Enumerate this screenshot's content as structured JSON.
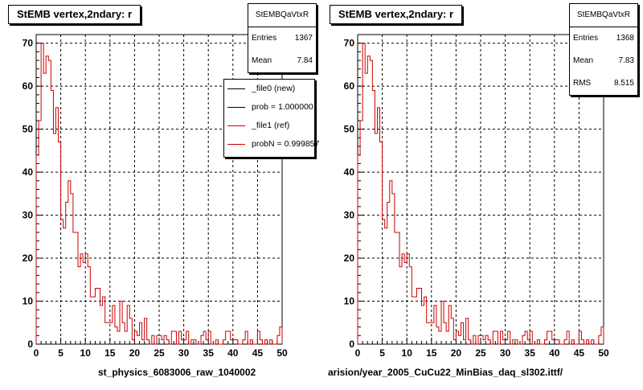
{
  "pads": [
    {
      "title": "StEMB  vertex,2ndary: r",
      "stats": {
        "name": "StEMBQaVtxR",
        "rows": [
          {
            "label": "Entries",
            "value": "1367"
          },
          {
            "label": "Mean",
            "value": "7.84"
          }
        ]
      },
      "legend": [
        {
          "label": "_file0 (new)",
          "color": "#000000"
        },
        {
          "label": "prob = 1.000000",
          "color": "#000000"
        },
        {
          "label": "_file1 (ref)",
          "color": "#cc0000"
        },
        {
          "label": "probN = 0.999857",
          "color": "#cc0000"
        }
      ],
      "xcaption": "st_physics_6083006_raw_1040002"
    },
    {
      "title": "StEMB  vertex,2ndary: r",
      "stats": {
        "name": "StEMBQaVtxR",
        "rows": [
          {
            "label": "Entries",
            "value": "1368"
          },
          {
            "label": "Mean",
            "value": "7.83"
          },
          {
            "label": "RMS",
            "value": "8.515"
          }
        ]
      },
      "legend": [],
      "xcaption": "arision/year_2005_CuCu22_MinBias_daq_sl302.ittf/"
    }
  ],
  "chart_data": [
    {
      "type": "bar",
      "style": "step-histogram",
      "title": "StEMB  vertex,2ndary: r",
      "xlabel": "",
      "ylabel": "",
      "xlim": [
        0,
        50
      ],
      "ylim": [
        0,
        72
      ],
      "xticks": [
        0,
        5,
        10,
        15,
        20,
        25,
        30,
        35,
        40,
        45,
        50
      ],
      "yticks": [
        0,
        10,
        20,
        30,
        40,
        50,
        60,
        70
      ],
      "grid": true,
      "legend_position": "top-right",
      "bin_width": 0.5,
      "series": [
        {
          "name": "_file1 (ref)",
          "color": "#cc0000",
          "values": [
            44,
            52,
            70,
            63,
            67,
            66,
            59,
            49,
            55,
            47,
            29,
            27,
            33,
            38,
            35,
            26,
            26,
            18,
            21,
            19,
            21,
            18,
            11,
            11,
            13,
            13,
            9,
            11,
            5,
            5,
            5,
            9,
            4,
            3,
            10,
            5,
            3,
            9,
            6,
            1,
            3,
            2,
            5,
            1,
            6,
            1,
            0,
            2,
            0,
            2,
            2,
            1,
            2,
            1,
            0,
            3,
            3,
            0,
            3,
            1,
            1,
            3,
            0,
            1,
            1,
            0,
            0,
            2,
            3,
            1,
            3,
            0,
            0,
            1,
            0,
            0,
            1,
            3,
            3,
            1,
            1,
            1,
            0,
            0,
            1,
            3,
            0,
            1,
            0,
            0,
            3,
            1,
            0,
            1,
            0,
            1,
            0,
            0,
            2,
            4
          ]
        }
      ]
    },
    {
      "type": "bar",
      "style": "step-histogram",
      "title": "StEMB  vertex,2ndary: r",
      "xlabel": "",
      "ylabel": "",
      "xlim": [
        0,
        50
      ],
      "ylim": [
        0,
        72
      ],
      "xticks": [
        0,
        5,
        10,
        15,
        20,
        25,
        30,
        35,
        40,
        45,
        50
      ],
      "yticks": [
        0,
        10,
        20,
        30,
        40,
        50,
        60,
        70
      ],
      "grid": true,
      "bin_width": 0.5,
      "series": [
        {
          "name": "_file1 (ref)",
          "color": "#cc0000",
          "values": [
            44,
            52,
            70,
            63,
            67,
            66,
            59,
            49,
            55,
            47,
            29,
            27,
            33,
            38,
            35,
            26,
            26,
            18,
            21,
            19,
            21,
            18,
            11,
            11,
            13,
            13,
            9,
            11,
            5,
            5,
            5,
            9,
            4,
            3,
            10,
            5,
            3,
            9,
            6,
            1,
            3,
            2,
            5,
            1,
            6,
            1,
            0,
            2,
            0,
            2,
            2,
            1,
            2,
            1,
            0,
            3,
            3,
            0,
            3,
            1,
            1,
            3,
            0,
            1,
            1,
            0,
            0,
            2,
            3,
            1,
            3,
            0,
            0,
            1,
            0,
            0,
            1,
            3,
            3,
            1,
            1,
            1,
            0,
            0,
            1,
            3,
            0,
            1,
            0,
            0,
            3,
            1,
            0,
            1,
            0,
            1,
            0,
            0,
            2,
            4
          ]
        }
      ]
    }
  ]
}
